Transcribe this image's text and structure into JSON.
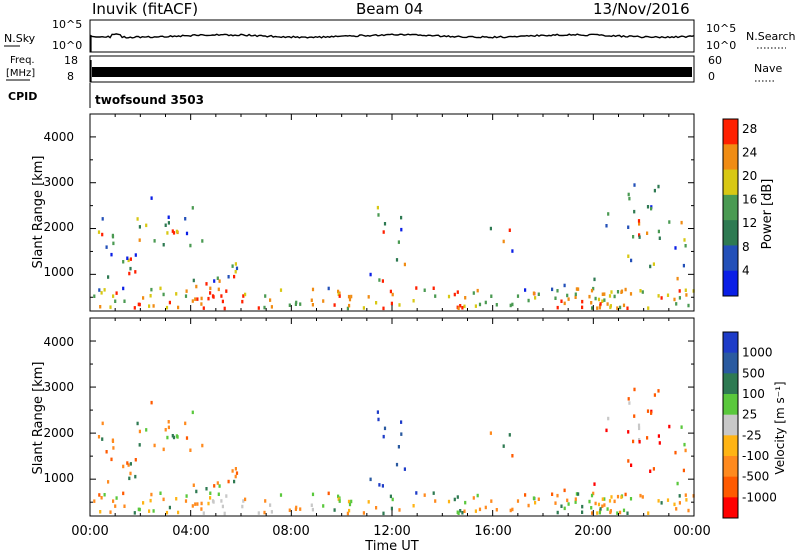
{
  "header": {
    "station": "Inuvik (fitACF)",
    "beam": "Beam 04",
    "date": "13/Nov/2016"
  },
  "strip_panels": {
    "sky_label": "N.Sky",
    "search_label": "N.Search",
    "sky_ticks": [
      "10^5",
      "10^0"
    ],
    "freq_label": "Freq.",
    "freq_unit": "[MHz]",
    "freq_ticks": [
      "18",
      "8"
    ],
    "nave_label": "Nave",
    "nave_ticks": [
      "60",
      "0"
    ],
    "cpid_label": "CPID",
    "cpid_value": "twofsound 3503"
  },
  "colors": {
    "power": [
      "#0a1fe6",
      "#2350b8",
      "#2e7a52",
      "#4a9a52",
      "#d8c814",
      "#f08c14",
      "#ff2000"
    ],
    "velocity": [
      "#ff0000",
      "#ff5a00",
      "#ff8a1e",
      "#ffb414",
      "#c8c8c8",
      "#5ac83c",
      "#2e7a52",
      "#2a5aa0",
      "#1e3cc8"
    ]
  },
  "chart_data": [
    {
      "type": "heatmap",
      "panel": "power",
      "ylabel": "Slant Range [km]",
      "xlabel": "",
      "y_ticks": [
        "1000",
        "2000",
        "3000",
        "4000"
      ],
      "ylim": [
        200,
        4500
      ],
      "x_ticks": [],
      "xlim": [
        0,
        24
      ],
      "colorbar_label": "Power [dB]",
      "colorbar_ticks": [
        "4",
        "8",
        "12",
        "16",
        "20",
        "24",
        "28"
      ],
      "colorbar_range": [
        0,
        30
      ]
    },
    {
      "type": "heatmap",
      "panel": "velocity",
      "ylabel": "Slant Range [km]",
      "xlabel": "Time UT",
      "y_ticks": [
        "1000",
        "2000",
        "3000",
        "4000"
      ],
      "ylim": [
        200,
        4500
      ],
      "x_ticks": [
        "00:00",
        "04:00",
        "08:00",
        "12:00",
        "16:00",
        "20:00",
        "00:00"
      ],
      "xlim": [
        0,
        24
      ],
      "colorbar_label": "Velocity [m s⁻¹]",
      "colorbar_ticks": [
        "1000",
        "500",
        "100",
        "25",
        "-25",
        "-100",
        "-500",
        "-1000"
      ]
    }
  ]
}
